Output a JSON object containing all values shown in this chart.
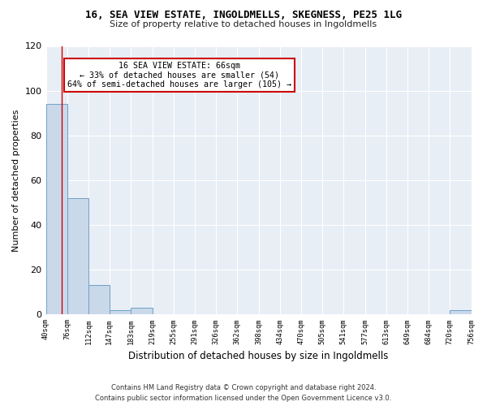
{
  "title": "16, SEA VIEW ESTATE, INGOLDMELLS, SKEGNESS, PE25 1LG",
  "subtitle": "Size of property relative to detached houses in Ingoldmells",
  "xlabel": "Distribution of detached houses by size in Ingoldmells",
  "ylabel": "Number of detached properties",
  "bar_color": "#c9d9ea",
  "bar_edge_color": "#6fa0c8",
  "annotation_box_color": "#ffffff",
  "annotation_border_color": "#cc0000",
  "property_line_color": "#cc0000",
  "property_size": 66,
  "annotation_text_line1": "16 SEA VIEW ESTATE: 66sqm",
  "annotation_text_line2": "← 33% of detached houses are smaller (54)",
  "annotation_text_line3": "64% of semi-detached houses are larger (105) →",
  "bin_edges": [
    40,
    76,
    112,
    147,
    183,
    219,
    255,
    291,
    326,
    362,
    398,
    434,
    470,
    505,
    541,
    577,
    613,
    649,
    684,
    720,
    756
  ],
  "bar_heights": [
    94,
    52,
    13,
    2,
    3,
    0,
    0,
    0,
    0,
    0,
    0,
    0,
    0,
    0,
    0,
    0,
    0,
    0,
    0,
    2
  ],
  "xlim_left": 40,
  "xlim_right": 756,
  "ylim_top": 120,
  "yticks": [
    0,
    20,
    40,
    60,
    80,
    100,
    120
  ],
  "background_color": "#e8eef5",
  "fig_background": "#ffffff",
  "footer_line1": "Contains HM Land Registry data © Crown copyright and database right 2024.",
  "footer_line2": "Contains public sector information licensed under the Open Government Licence v3.0."
}
